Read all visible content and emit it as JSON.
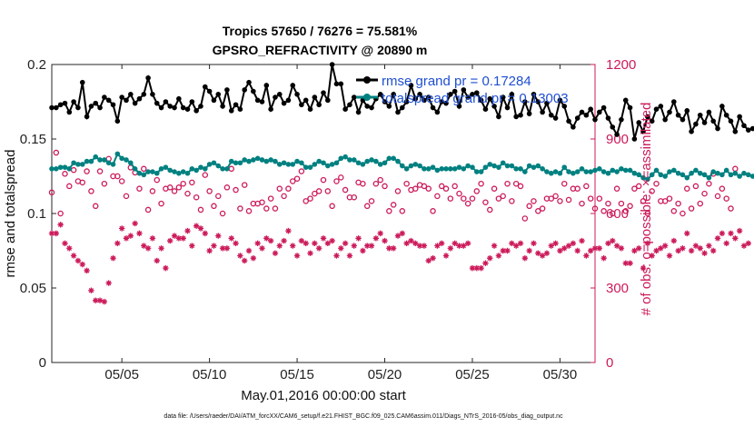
{
  "chart_data": {
    "type": "line",
    "title": "Tropics 57650 / 76276 = 75.581%",
    "subtitle": "GPSRO_REFRACTIVITY @ 20890 m",
    "xlabel": "May.01,2016 00:00:00 start",
    "ylabel": "rmse and totalspread",
    "ylabel_right": "# of obs: o=possible; ×=assimilated",
    "footnote": "data file: /Users/raeder/DAI/ATM_forcXX/CAM6_setup/f.e21.FHIST_BGC.f09_025.CAM6assim.011/Diags_NTrS_2016-05/obs_diag_output.nc",
    "x_tick_labels": [
      "05/05",
      "05/10",
      "05/15",
      "05/20",
      "05/25",
      "05/30"
    ],
    "x_tick_days": [
      5,
      10,
      15,
      20,
      25,
      30
    ],
    "xlim": [
      1,
      32
    ],
    "ylim": [
      0,
      0.2
    ],
    "y_ticks": [
      "0",
      "0.05",
      "0.1",
      "0.15",
      "0.2"
    ],
    "y_right_lim": [
      0,
      1200
    ],
    "y_right_ticks": [
      "0",
      "300",
      "600",
      "900",
      "1200"
    ],
    "grid": false,
    "legend_position": "top-right",
    "colors": {
      "rmse": "#000000",
      "spread": "#008080",
      "obs": "#cc1a5a",
      "legend_text": "#1f4fd1"
    },
    "series": [
      {
        "name": "rmse grand pr = 0.17284",
        "x_start_day": 1.0,
        "x_step_days": 0.25,
        "values": [
          0.171,
          0.171,
          0.173,
          0.174,
          0.168,
          0.175,
          0.171,
          0.188,
          0.165,
          0.172,
          0.174,
          0.171,
          0.178,
          0.176,
          0.173,
          0.162,
          0.178,
          0.176,
          0.18,
          0.174,
          0.177,
          0.18,
          0.191,
          0.18,
          0.174,
          0.171,
          0.175,
          0.172,
          0.171,
          0.177,
          0.171,
          0.17,
          0.175,
          0.169,
          0.172,
          0.185,
          0.182,
          0.176,
          0.18,
          0.172,
          0.183,
          0.169,
          0.173,
          0.17,
          0.183,
          0.188,
          0.182,
          0.176,
          0.175,
          0.186,
          0.17,
          0.178,
          0.18,
          0.174,
          0.176,
          0.186,
          0.18,
          0.173,
          0.176,
          0.17,
          0.178,
          0.173,
          0.181,
          0.176,
          0.2,
          0.187,
          0.187,
          0.17,
          0.173,
          0.178,
          0.168,
          0.176,
          0.172,
          0.171,
          0.177,
          0.18,
          0.175,
          0.172,
          0.18,
          0.168,
          0.171,
          0.175,
          0.186,
          0.177,
          0.18,
          0.176,
          0.178,
          0.171,
          0.168,
          0.175,
          0.174,
          0.18,
          0.182,
          0.172,
          0.183,
          0.178,
          0.18,
          0.181,
          0.176,
          0.17,
          0.177,
          0.172,
          0.165,
          0.178,
          0.171,
          0.18,
          0.165,
          0.166,
          0.175,
          0.167,
          0.18,
          0.175,
          0.168,
          0.174,
          0.166,
          0.164,
          0.176,
          0.172,
          0.162,
          0.158,
          0.164,
          0.168,
          0.166,
          0.17,
          0.163,
          0.168,
          0.171,
          0.164,
          0.158,
          0.153,
          0.163,
          0.176,
          0.171,
          0.15,
          0.161,
          0.155,
          0.165,
          0.162,
          0.17,
          0.172,
          0.163,
          0.168,
          0.175,
          0.166,
          0.163,
          0.169,
          0.155,
          0.16,
          0.166,
          0.161,
          0.168,
          0.162,
          0.157,
          0.172,
          0.166,
          0.162,
          0.155,
          0.165,
          0.159,
          0.156,
          0.157,
          0.157
        ]
      },
      {
        "name": "totalspread grand pr = 0.13003",
        "x_start_day": 1.0,
        "x_step_days": 0.25,
        "values": [
          0.13,
          0.13,
          0.131,
          0.131,
          0.13,
          0.134,
          0.133,
          0.133,
          0.135,
          0.135,
          0.138,
          0.136,
          0.136,
          0.134,
          0.133,
          0.14,
          0.137,
          0.136,
          0.134,
          0.13,
          0.127,
          0.126,
          0.128,
          0.128,
          0.127,
          0.13,
          0.131,
          0.129,
          0.128,
          0.127,
          0.128,
          0.127,
          0.13,
          0.129,
          0.131,
          0.13,
          0.133,
          0.134,
          0.132,
          0.13,
          0.13,
          0.135,
          0.134,
          0.134,
          0.136,
          0.135,
          0.136,
          0.137,
          0.136,
          0.135,
          0.136,
          0.135,
          0.133,
          0.134,
          0.133,
          0.133,
          0.135,
          0.134,
          0.131,
          0.131,
          0.133,
          0.135,
          0.134,
          0.132,
          0.133,
          0.134,
          0.137,
          0.138,
          0.136,
          0.136,
          0.134,
          0.133,
          0.135,
          0.136,
          0.135,
          0.133,
          0.134,
          0.137,
          0.137,
          0.135,
          0.132,
          0.13,
          0.132,
          0.133,
          0.132,
          0.13,
          0.13,
          0.131,
          0.129,
          0.13,
          0.13,
          0.13,
          0.13,
          0.131,
          0.13,
          0.132,
          0.131,
          0.128,
          0.128,
          0.131,
          0.133,
          0.132,
          0.131,
          0.134,
          0.132,
          0.132,
          0.13,
          0.13,
          0.128,
          0.132,
          0.131,
          0.132,
          0.13,
          0.128,
          0.127,
          0.128,
          0.127,
          0.131,
          0.128,
          0.127,
          0.128,
          0.13,
          0.128,
          0.128,
          0.129,
          0.13,
          0.128,
          0.127,
          0.129,
          0.128,
          0.13,
          0.129,
          0.129,
          0.127,
          0.126,
          0.124,
          0.123,
          0.126,
          0.129,
          0.126,
          0.125,
          0.128,
          0.129,
          0.127,
          0.126,
          0.124,
          0.127,
          0.129,
          0.127,
          0.126,
          0.124,
          0.128,
          0.127,
          0.126,
          0.129,
          0.126,
          0.127,
          0.125,
          0.127,
          0.126,
          0.125,
          0.123
        ]
      },
      {
        "name": "",
        "marker": "o",
        "x_start_day": 1.0,
        "x_step_days": 0.25,
        "values": [
          685,
          845,
          600,
          760,
          710,
          775,
          730,
          725,
          770,
          690,
          630,
          770,
          720,
          820,
          750,
          750,
          730,
          670,
          785,
          765,
          700,
          780,
          615,
          690,
          735,
          640,
          700,
          705,
          690,
          705,
          720,
          680,
          725,
          665,
          615,
          755,
          690,
          630,
          670,
          600,
          705,
          780,
          695,
          620,
          715,
          610,
          640,
          640,
          645,
          620,
          660,
          620,
          700,
          670,
          700,
          730,
          740,
          770,
          650,
          660,
          680,
          690,
          735,
          690,
          630,
          730,
          745,
          695,
          665,
          665,
          725,
          720,
          630,
          650,
          720,
          735,
          710,
          610,
          635,
          690,
          610,
          720,
          695,
          700,
          715,
          710,
          700,
          610,
          670,
          710,
          700,
          660,
          710,
          680,
          660,
          640,
          660,
          690,
          720,
          645,
          615,
          700,
          660,
          670,
          720,
          650,
          720,
          710,
          580,
          630,
          650,
          610,
          620,
          660,
          660,
          670,
          650,
          720,
          655,
          700,
          700,
          640,
          710,
          660,
          620,
          660,
          610,
          640,
          600,
          700,
          640,
          610,
          630,
          700,
          710,
          650,
          600,
          690,
          720,
          650,
          650,
          660,
          610,
          640,
          600,
          700,
          620,
          710,
          640,
          680,
          720,
          760,
          670,
          700,
          660,
          620,
          780
        ]
      },
      {
        "name": "",
        "marker": "*",
        "x_start_day": 1.0,
        "x_step_days": 0.25,
        "values": [
          520,
          520,
          555,
          480,
          460,
          430,
          410,
          395,
          370,
          290,
          250,
          250,
          245,
          320,
          420,
          480,
          540,
          500,
          510,
          560,
          520,
          470,
          460,
          500,
          410,
          460,
          380,
          490,
          510,
          500,
          500,
          530,
          470,
          550,
          540,
          520,
          450,
          470,
          510,
          460,
          460,
          500,
          480,
          430,
          410,
          450,
          420,
          480,
          460,
          500,
          490,
          440,
          470,
          490,
          530,
          470,
          430,
          490,
          480,
          440,
          480,
          460,
          500,
          480,
          490,
          430,
          460,
          480,
          430,
          470,
          500,
          450,
          470,
          470,
          500,
          520,
          490,
          460,
          460,
          510,
          520,
          480,
          490,
          480,
          470,
          470,
          410,
          420,
          470,
          480,
          430,
          460,
          480,
          470,
          470,
          480,
          380,
          380,
          380,
          400,
          420,
          470,
          430,
          450,
          450,
          480,
          470,
          480,
          420,
          450,
          480,
          440,
          430,
          440,
          470,
          480,
          450,
          460,
          470,
          480,
          450,
          490,
          430,
          450,
          460,
          460,
          420,
          480,
          490,
          470,
          460,
          400,
          400,
          450,
          460,
          380,
          480,
          430,
          450,
          460,
          470,
          430,
          490,
          450,
          460,
          520,
          450,
          470,
          460,
          440,
          470,
          450,
          500,
          520,
          480,
          520,
          500,
          530,
          470,
          480
        ]
      }
    ]
  }
}
